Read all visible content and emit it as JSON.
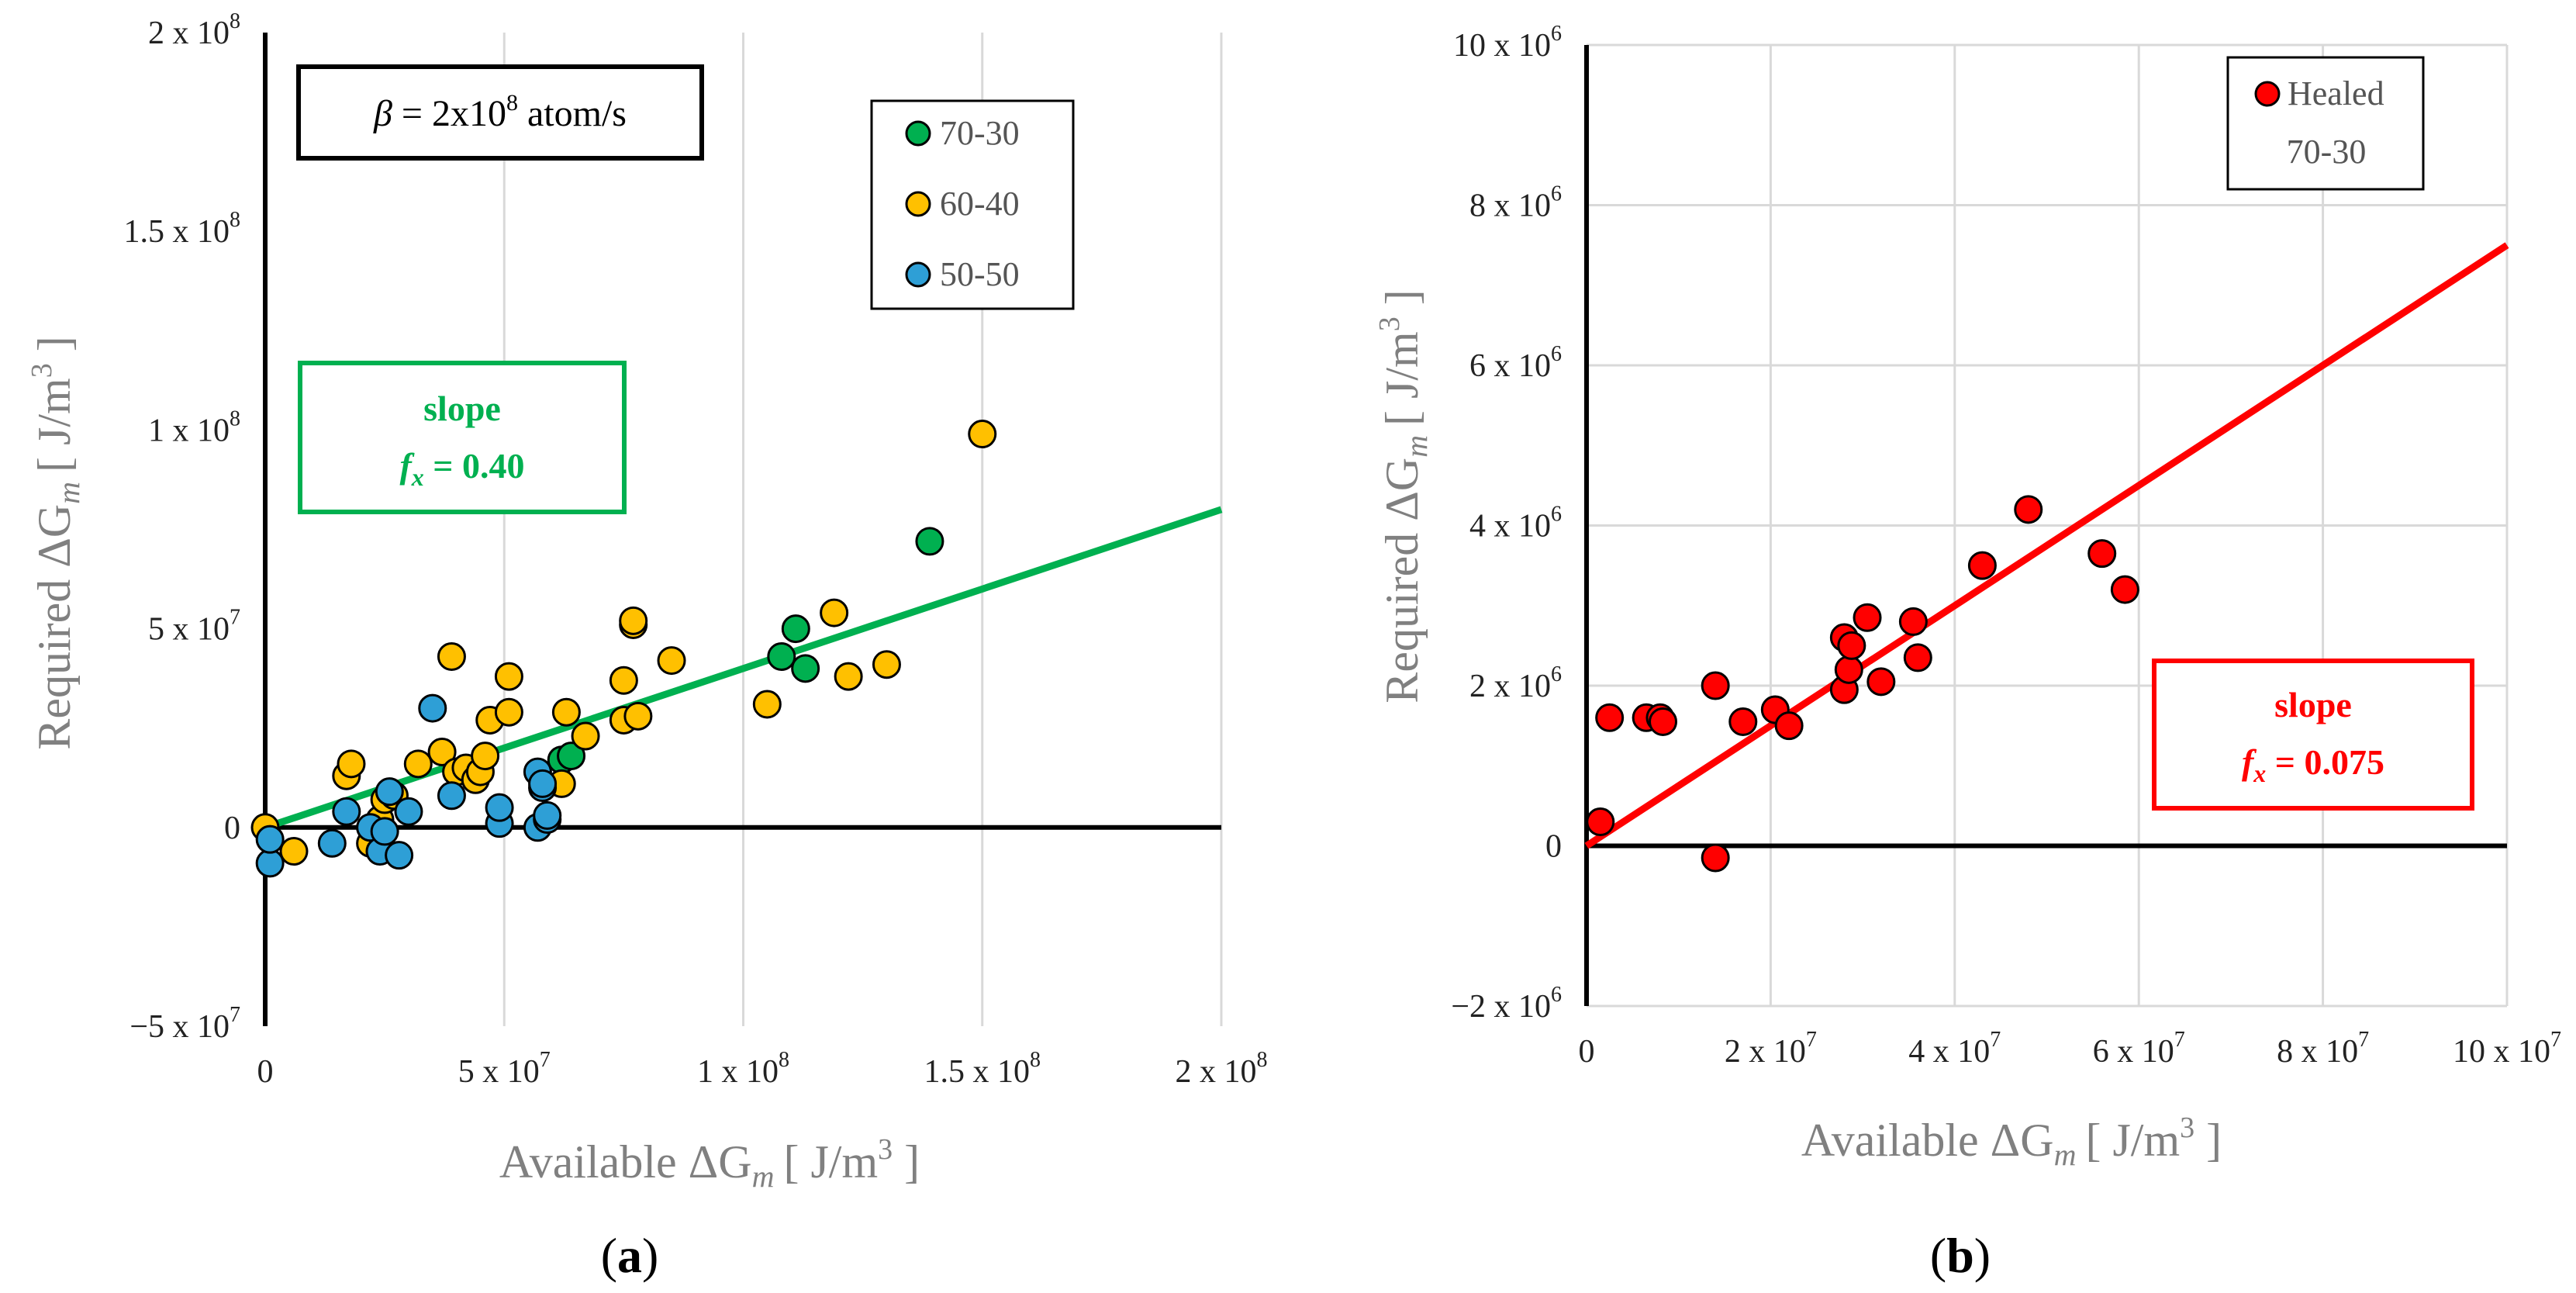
{
  "chart_data": [
    {
      "type": "scatter",
      "panel_label": "(a)",
      "xlabel_main": "Available ΔG",
      "xlabel_sub": "m",
      "xlabel_units": "[ J/m",
      "xlabel_units_sup": "3",
      "xlabel_close": " ]",
      "ylabel_main": "Required ΔG",
      "ylabel_sub": "m",
      "ylabel_units": "[ J/m",
      "ylabel_units_sup": "3",
      "ylabel_close": " ]",
      "xlim": [
        0,
        200000000
      ],
      "ylim": [
        -50000000,
        200000000
      ],
      "x_ticks": [
        {
          "value": 0,
          "mant": "0",
          "exp": ""
        },
        {
          "value": 50000000,
          "mant": "5 x 10",
          "exp": "7"
        },
        {
          "value": 100000000,
          "mant": "1 x 10",
          "exp": "8"
        },
        {
          "value": 150000000,
          "mant": "1.5 x 10",
          "exp": "8"
        },
        {
          "value": 200000000,
          "mant": "2 x 10",
          "exp": "8"
        }
      ],
      "y_ticks": [
        {
          "value": -50000000,
          "mant": "−5 x 10",
          "exp": "7"
        },
        {
          "value": 0,
          "mant": "0",
          "exp": ""
        },
        {
          "value": 50000000,
          "mant": "5 x 10",
          "exp": "7"
        },
        {
          "value": 100000000,
          "mant": "1 x 10",
          "exp": "8"
        },
        {
          "value": 150000000,
          "mant": "1.5 x 10",
          "exp": "8"
        },
        {
          "value": 200000000,
          "mant": "2 x 10",
          "exp": "8"
        }
      ],
      "grid": "vertical",
      "beta_box": {
        "symbol": "β",
        "eq": " = 2x10",
        "exp": "8",
        "unit": " atom/s"
      },
      "slope_box": {
        "title": "slope",
        "var": "f",
        "var_sub": "x",
        "value": " = 0.40",
        "color": "#00b050"
      },
      "fit_line": {
        "slope": 0.4,
        "intercept": 0,
        "x_range": [
          0,
          200000000
        ],
        "color": "#00b050"
      },
      "legend_position": "top-right",
      "series": [
        {
          "name": "70-30",
          "color": "#00b050",
          "points": [
            [
              108000000,
              43000000
            ],
            [
              111000000,
              50000000
            ],
            [
              113000000,
              40000000
            ],
            [
              139000000,
              72000000
            ],
            [
              62000000,
              17000000
            ],
            [
              64000000,
              18000000
            ]
          ]
        },
        {
          "name": "60-40",
          "color": "#ffc000",
          "points": [
            [
              150000000,
              99000000
            ],
            [
              0,
              0
            ],
            [
              6000000,
              -6000000
            ],
            [
              17000000,
              13000000
            ],
            [
              18000000,
              16000000
            ],
            [
              22000000,
              -4000000
            ],
            [
              24000000,
              2000000
            ],
            [
              25000000,
              7000000
            ],
            [
              27000000,
              8000000
            ],
            [
              32000000,
              16000000
            ],
            [
              37000000,
              19000000
            ],
            [
              39000000,
              43000000
            ],
            [
              40000000,
              14000000
            ],
            [
              42000000,
              15000000
            ],
            [
              44000000,
              12000000
            ],
            [
              45000000,
              14000000
            ],
            [
              46000000,
              18000000
            ],
            [
              47000000,
              27000000
            ],
            [
              51000000,
              29000000
            ],
            [
              51000000,
              38000000
            ],
            [
              62000000,
              11000000
            ],
            [
              63000000,
              29000000
            ],
            [
              67000000,
              23000000
            ],
            [
              75000000,
              27000000
            ],
            [
              75000000,
              37000000
            ],
            [
              77000000,
              51000000
            ],
            [
              77000000,
              52000000
            ],
            [
              78000000,
              28000000
            ],
            [
              85000000,
              42000000
            ],
            [
              105000000,
              31000000
            ],
            [
              119000000,
              54000000
            ],
            [
              122000000,
              38000000
            ],
            [
              130000000,
              41000000
            ]
          ]
        },
        {
          "name": "50-50",
          "color": "#2e9fd6",
          "points": [
            [
              1000000,
              -9000000
            ],
            [
              1000000,
              -3000000
            ],
            [
              14000000,
              -4000000
            ],
            [
              17000000,
              4000000
            ],
            [
              22000000,
              0
            ],
            [
              24000000,
              -6000000
            ],
            [
              25000000,
              -1000000
            ],
            [
              26000000,
              9000000
            ],
            [
              28000000,
              -7000000
            ],
            [
              30000000,
              4000000
            ],
            [
              35000000,
              30000000
            ],
            [
              39000000,
              8000000
            ],
            [
              49000000,
              1000000
            ],
            [
              49000000,
              5000000
            ],
            [
              57000000,
              14000000
            ],
            [
              57000000,
              0
            ],
            [
              58000000,
              10000000
            ],
            [
              59000000,
              2000000
            ],
            [
              59000000,
              3000000
            ],
            [
              58000000,
              11000000
            ]
          ]
        }
      ]
    },
    {
      "type": "scatter",
      "panel_label": "(b)",
      "xlabel_main": "Available ΔG",
      "xlabel_sub": "m",
      "xlabel_units": "[ J/m",
      "xlabel_units_sup": "3",
      "xlabel_close": " ]",
      "ylabel_main": "Required ΔG",
      "ylabel_sub": "m",
      "ylabel_units": "[ J/m",
      "ylabel_units_sup": "3",
      "ylabel_close": " ]",
      "xlim": [
        0,
        100000000
      ],
      "ylim": [
        -2000000,
        10000000
      ],
      "x_ticks": [
        {
          "value": 0,
          "mant": "0",
          "exp": ""
        },
        {
          "value": 20000000,
          "mant": "2 x 10",
          "exp": "7"
        },
        {
          "value": 40000000,
          "mant": "4 x 10",
          "exp": "7"
        },
        {
          "value": 60000000,
          "mant": "6 x 10",
          "exp": "7"
        },
        {
          "value": 80000000,
          "mant": "8 x 10",
          "exp": "7"
        },
        {
          "value": 100000000,
          "mant": "10 x 10",
          "exp": "7"
        }
      ],
      "y_ticks": [
        {
          "value": -2000000,
          "mant": "−2 x 10",
          "exp": "6"
        },
        {
          "value": 0,
          "mant": "0",
          "exp": ""
        },
        {
          "value": 2000000,
          "mant": "2 x 10",
          "exp": "6"
        },
        {
          "value": 4000000,
          "mant": "4 x 10",
          "exp": "6"
        },
        {
          "value": 6000000,
          "mant": "6 x 10",
          "exp": "6"
        },
        {
          "value": 8000000,
          "mant": "8 x 10",
          "exp": "6"
        },
        {
          "value": 10000000,
          "mant": "10 x 10",
          "exp": "6"
        }
      ],
      "grid": "both",
      "slope_box": {
        "title": "slope",
        "var": "f",
        "var_sub": "x",
        "value": " = 0.075",
        "color": "#ff0000"
      },
      "fit_line": {
        "slope": 0.075,
        "intercept": 0,
        "x_range": [
          0,
          100000000
        ],
        "color": "#ff0000"
      },
      "legend_position": "top-right",
      "series": [
        {
          "name": "Healed",
          "name_line2": "70-30",
          "color": "#ff0000",
          "points": [
            [
              1500000,
              300000
            ],
            [
              2500000,
              1600000
            ],
            [
              6500000,
              1600000
            ],
            [
              8000000,
              1600000
            ],
            [
              8300000,
              1550000
            ],
            [
              14000000,
              2000000
            ],
            [
              14000000,
              -150000
            ],
            [
              17000000,
              1550000
            ],
            [
              20500000,
              1700000
            ],
            [
              22000000,
              1500000
            ],
            [
              28000000,
              2600000
            ],
            [
              28000000,
              1950000
            ],
            [
              28500000,
              2200000
            ],
            [
              28800000,
              2500000
            ],
            [
              30500000,
              2850000
            ],
            [
              32000000,
              2050000
            ],
            [
              35500000,
              2800000
            ],
            [
              36000000,
              2350000
            ],
            [
              43000000,
              3500000
            ],
            [
              48000000,
              4200000
            ],
            [
              56000000,
              3650000
            ],
            [
              58500000,
              3200000
            ]
          ]
        }
      ]
    }
  ]
}
